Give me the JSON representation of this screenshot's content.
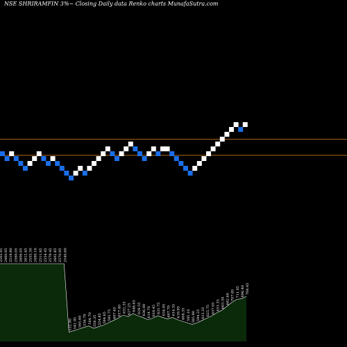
{
  "chart_data": {
    "type": "renko",
    "title": "NSE SHRIRAMFIN  3%~  Closing Daily data  Renko  charts MunafaSutra.com",
    "brick_colors": {
      "up": "#ffffff",
      "down": "#1a6fe8"
    },
    "levels_color": "#b06a1a",
    "volume_color": "#0a2a0a",
    "volume_line_color": "#ffffff",
    "bricks": [
      {
        "dir": "down",
        "level": 0
      },
      {
        "dir": "down",
        "level": -1
      },
      {
        "dir": "up",
        "level": 0
      },
      {
        "dir": "down",
        "level": -1
      },
      {
        "dir": "down",
        "level": -2
      },
      {
        "dir": "down",
        "level": -3
      },
      {
        "dir": "up",
        "level": -2
      },
      {
        "dir": "up",
        "level": -1
      },
      {
        "dir": "up",
        "level": 0
      },
      {
        "dir": "down",
        "level": -1
      },
      {
        "dir": "down",
        "level": -2
      },
      {
        "dir": "up",
        "level": -1
      },
      {
        "dir": "down",
        "level": -2
      },
      {
        "dir": "down",
        "level": -3
      },
      {
        "dir": "down",
        "level": -4
      },
      {
        "dir": "down",
        "level": -5
      },
      {
        "dir": "up",
        "level": -4
      },
      {
        "dir": "up",
        "level": -3
      },
      {
        "dir": "down",
        "level": -4
      },
      {
        "dir": "up",
        "level": -3
      },
      {
        "dir": "up",
        "level": -2
      },
      {
        "dir": "up",
        "level": -1
      },
      {
        "dir": "up",
        "level": 0
      },
      {
        "dir": "up",
        "level": 1
      },
      {
        "dir": "down",
        "level": 0
      },
      {
        "dir": "down",
        "level": -1
      },
      {
        "dir": "up",
        "level": 0
      },
      {
        "dir": "up",
        "level": 1
      },
      {
        "dir": "up",
        "level": 2
      },
      {
        "dir": "down",
        "level": 1
      },
      {
        "dir": "down",
        "level": 0
      },
      {
        "dir": "down",
        "level": -1
      },
      {
        "dir": "up",
        "level": 0
      },
      {
        "dir": "up",
        "level": 1
      },
      {
        "dir": "down",
        "level": 0
      },
      {
        "dir": "up",
        "level": 1
      },
      {
        "dir": "up",
        "level": 1
      },
      {
        "dir": "down",
        "level": 0
      },
      {
        "dir": "down",
        "level": -1
      },
      {
        "dir": "down",
        "level": -2
      },
      {
        "dir": "down",
        "level": -3
      },
      {
        "dir": "down",
        "level": -4
      },
      {
        "dir": "up",
        "level": -3
      },
      {
        "dir": "up",
        "level": -2
      },
      {
        "dir": "up",
        "level": -1
      },
      {
        "dir": "up",
        "level": 0
      },
      {
        "dir": "up",
        "level": 1
      },
      {
        "dir": "up",
        "level": 2
      },
      {
        "dir": "up",
        "level": 3
      },
      {
        "dir": "up",
        "level": 4
      },
      {
        "dir": "up",
        "level": 5
      },
      {
        "dir": "up",
        "level": 6
      },
      {
        "dir": "down",
        "level": 5
      },
      {
        "dir": "up",
        "level": 6
      }
    ],
    "levels": [
      2.9,
      -0.4
    ],
    "volume_series": [
      {
        "value": 100,
        "label": "2503.05"
      },
      {
        "value": 100,
        "label": "2460.95"
      },
      {
        "value": 100,
        "label": "2519.80"
      },
      {
        "value": 100,
        "label": "2560.05"
      },
      {
        "value": 100,
        "label": "2606.05"
      },
      {
        "value": 100,
        "label": "2612.65"
      },
      {
        "value": 100,
        "label": "2555.30"
      },
      {
        "value": 100,
        "label": "2490.10"
      },
      {
        "value": 100,
        "label": "2511.95"
      },
      {
        "value": 100,
        "label": "2554.45"
      },
      {
        "value": 100,
        "label": "2579.45"
      },
      {
        "value": 100,
        "label": "2602.85"
      },
      {
        "value": 100,
        "label": "2570.95"
      },
      {
        "value": 100,
        "label": "2540.60"
      },
      {
        "value": 12,
        "label": "532.90"
      },
      {
        "value": 14,
        "label": "541.95"
      },
      {
        "value": 16,
        "label": "565.60"
      },
      {
        "value": 18,
        "label": "536.70"
      },
      {
        "value": 20,
        "label": "564.70"
      },
      {
        "value": 17,
        "label": "556.35"
      },
      {
        "value": 19,
        "label": "554.85"
      },
      {
        "value": 21,
        "label": "584.65"
      },
      {
        "value": 24,
        "label": "595.75"
      },
      {
        "value": 27,
        "label": "607.65"
      },
      {
        "value": 30,
        "label": "617.40"
      },
      {
        "value": 34,
        "label": "632.35"
      },
      {
        "value": 32,
        "label": "627.25"
      },
      {
        "value": 36,
        "label": "648.65"
      },
      {
        "value": 33,
        "label": "629.55"
      },
      {
        "value": 31,
        "label": "636.00"
      },
      {
        "value": 28,
        "label": "614.70"
      },
      {
        "value": 30,
        "label": "618.45"
      },
      {
        "value": 33,
        "label": "631.75"
      },
      {
        "value": 31,
        "label": "634.05"
      },
      {
        "value": 29,
        "label": "607.70"
      },
      {
        "value": 31,
        "label": "614.35"
      },
      {
        "value": 28,
        "label": "619.95"
      },
      {
        "value": 26,
        "label": "608.35"
      },
      {
        "value": 24,
        "label": "595.10"
      },
      {
        "value": 22,
        "label": "585.80"
      },
      {
        "value": 24,
        "label": "594.25"
      },
      {
        "value": 27,
        "label": "613.35"
      },
      {
        "value": 30,
        "label": "625.75"
      },
      {
        "value": 33,
        "label": "637.05"
      },
      {
        "value": 37,
        "label": "651.35"
      },
      {
        "value": 40,
        "label": "663.30"
      },
      {
        "value": 45,
        "label": "682.60"
      },
      {
        "value": 50,
        "label": "707.85"
      },
      {
        "value": 54,
        "label": "711.05"
      },
      {
        "value": 55,
        "label": "696.40"
      },
      {
        "value": 58,
        "label": "706.45"
      }
    ]
  }
}
